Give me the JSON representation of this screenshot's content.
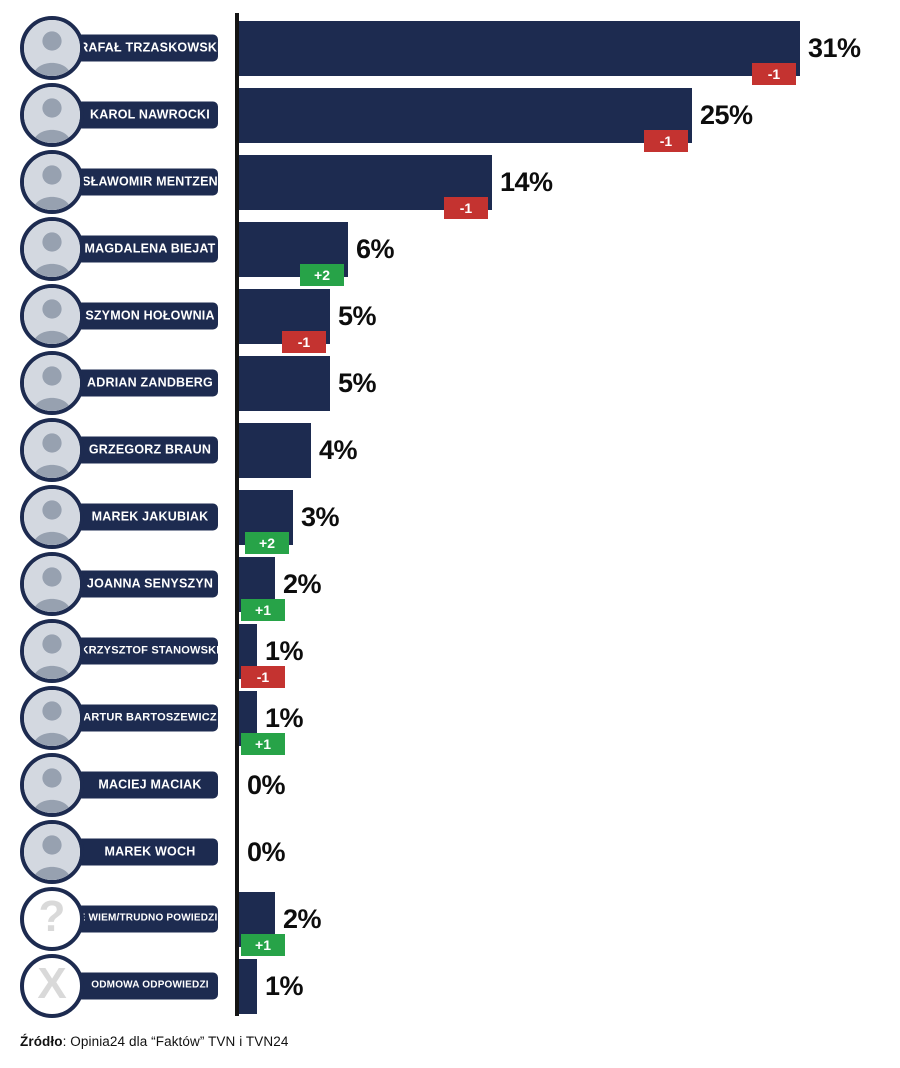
{
  "colors": {
    "navy": "#1d2b50",
    "red": "#c43330",
    "green": "#27a348",
    "axis": "#141414",
    "text": "#0d0d0d"
  },
  "rows": [
    {
      "name": "RAFAŁ TRZASKOWSKI",
      "pct_label": "31%",
      "value": 31,
      "change": "-1",
      "change_type": "neg",
      "icon": "photo"
    },
    {
      "name": "KAROL NAWROCKI",
      "pct_label": "25%",
      "value": 25,
      "change": "-1",
      "change_type": "neg",
      "icon": "photo"
    },
    {
      "name": "SŁAWOMIR MENTZEN",
      "pct_label": "14%",
      "value": 14,
      "change": "-1",
      "change_type": "neg",
      "icon": "photo"
    },
    {
      "name": "MAGDALENA BIEJAT",
      "pct_label": "6%",
      "value": 6,
      "change": "+2",
      "change_type": "pos",
      "icon": "photo"
    },
    {
      "name": "SZYMON HOŁOWNIA",
      "pct_label": "5%",
      "value": 5,
      "change": "-1",
      "change_type": "neg",
      "icon": "photo"
    },
    {
      "name": "ADRIAN ZANDBERG",
      "pct_label": "5%",
      "value": 5,
      "change": null,
      "change_type": null,
      "icon": "photo"
    },
    {
      "name": "GRZEGORZ BRAUN",
      "pct_label": "4%",
      "value": 4,
      "change": null,
      "change_type": null,
      "icon": "photo"
    },
    {
      "name": "MAREK JAKUBIAK",
      "pct_label": "3%",
      "value": 3,
      "change": "+2",
      "change_type": "pos",
      "icon": "photo"
    },
    {
      "name": "JOANNA SENYSZYN",
      "pct_label": "2%",
      "value": 2,
      "change": "+1",
      "change_type": "pos",
      "icon": "photo"
    },
    {
      "name": "KRZYSZTOF STANOWSKI",
      "pct_label": "1%",
      "value": 1,
      "change": "-1",
      "change_type": "neg",
      "icon": "photo"
    },
    {
      "name": "ARTUR BARTOSZEWICZ",
      "pct_label": "1%",
      "value": 1,
      "change": "+1",
      "change_type": "pos",
      "icon": "photo"
    },
    {
      "name": "MACIEJ MACIAK",
      "pct_label": "0%",
      "value": 0,
      "change": null,
      "change_type": null,
      "icon": "photo"
    },
    {
      "name": "MAREK WOCH",
      "pct_label": "0%",
      "value": 0,
      "change": null,
      "change_type": null,
      "icon": "photo"
    },
    {
      "name": "NIE WIEM/TRUDNO POWIEDZIEĆ",
      "pct_label": "2%",
      "value": 2,
      "change": "+1",
      "change_type": "pos",
      "icon": "question"
    },
    {
      "name": "ODMOWA ODPOWIEDZI",
      "pct_label": "1%",
      "value": 1,
      "change": null,
      "change_type": null,
      "icon": "x"
    }
  ],
  "footer": {
    "source_bold": "Źródło",
    "source_rest": ": Opinia24 dla “Faktów” TVN i TVN24"
  },
  "chart_data": {
    "type": "bar",
    "orientation": "horizontal",
    "unit": "%",
    "categories": [
      "RAFAŁ TRZASKOWSKI",
      "KAROL NAWROCKI",
      "SŁAWOMIR MENTZEN",
      "MAGDALENA BIEJAT",
      "SZYMON HOŁOWNIA",
      "ADRIAN ZANDBERG",
      "GRZEGORZ BRAUN",
      "MAREK JAKUBIAK",
      "JOANNA SENYSZYN",
      "KRZYSZTOF STANOWSKI",
      "ARTUR BARTOSZEWICZ",
      "MACIEJ MACIAK",
      "MAREK WOCH",
      "NIE WIEM/TRUDNO POWIEDZIEĆ",
      "ODMOWA ODPOWIEDZI"
    ],
    "values": [
      31,
      25,
      14,
      6,
      5,
      5,
      4,
      3,
      2,
      1,
      1,
      0,
      0,
      2,
      1
    ],
    "changes": [
      "-1",
      "-1",
      "-1",
      "+2",
      "-1",
      null,
      null,
      "+2",
      "+1",
      "-1",
      "+1",
      null,
      null,
      "+1",
      null
    ],
    "title": "",
    "xlabel": "",
    "ylabel": "",
    "xlim": [
      0,
      35
    ],
    "grid": false,
    "legend": false,
    "bar_color": "#1d2b50",
    "negative_badge_color": "#c43330",
    "positive_badge_color": "#27a348",
    "source": "Źródło: Opinia24 dla “Faktów” TVN i TVN24"
  }
}
